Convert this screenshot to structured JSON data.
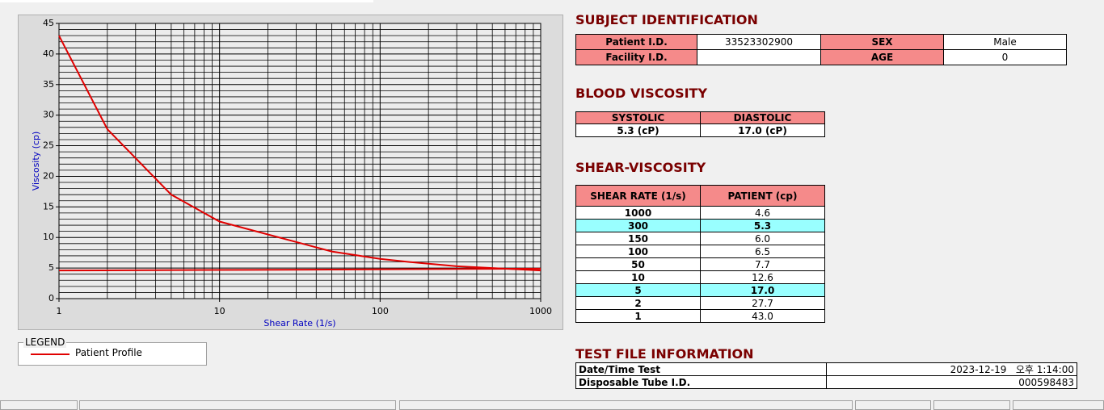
{
  "chart_data": {
    "type": "line",
    "x_label": "Shear Rate (1/s)",
    "y_label": "Viscosity (cp)",
    "series": [
      {
        "name": "Patient Profile",
        "color": "#e00000",
        "x": [
          1,
          2,
          5,
          10,
          50,
          100,
          150,
          300,
          1000
        ],
        "values": [
          43.0,
          27.7,
          17.0,
          12.6,
          7.7,
          6.5,
          6.0,
          5.3,
          4.6
        ]
      },
      {
        "color": "#e00000",
        "x": [
          1,
          15,
          1000
        ],
        "values": [
          4.6,
          4.7,
          4.9
        ]
      }
    ],
    "xlim": [
      1,
      1000
    ],
    "xticks": [
      1,
      10,
      100,
      1000
    ],
    "x_log": true,
    "ylim": [
      0,
      45
    ],
    "yticks": [
      0,
      5,
      10,
      15,
      20,
      25,
      30,
      35,
      40,
      45
    ],
    "x_minor_grid": [
      2,
      3,
      4,
      5,
      6,
      7,
      8,
      9,
      20,
      30,
      40,
      50,
      60,
      70,
      80,
      90,
      200,
      300,
      400,
      500,
      600,
      700,
      800,
      900
    ],
    "y_minor_grid": [
      1,
      2,
      3,
      4,
      6,
      7,
      8,
      9,
      11,
      12,
      13,
      14,
      16,
      17,
      18,
      19,
      21,
      22,
      23,
      24,
      26,
      27,
      28,
      29,
      31,
      32,
      33,
      34,
      36,
      37,
      38,
      39,
      41,
      42,
      43,
      44
    ],
    "grid": true,
    "legend_title": "LEGEND"
  },
  "subject": {
    "title": "SUBJECT IDENTIFICATION",
    "rows": [
      [
        "Patient I.D.",
        "33523302900",
        "SEX",
        "Male"
      ],
      [
        "Facility I.D.",
        null,
        "AGE",
        0
      ]
    ]
  },
  "blood": {
    "title": "BLOOD VISCOSITY",
    "headers": [
      "SYSTOLIC",
      "DIASTOLIC"
    ],
    "values": [
      "5.3 (cP)",
      "17.0 (cP)"
    ]
  },
  "shear": {
    "title": "SHEAR-VISCOSITY",
    "headers": [
      "SHEAR RATE (1/s)",
      "PATIENT (cp)"
    ],
    "rows": [
      {
        "rate": 1000,
        "patient": "4.6",
        "highlight": false
      },
      {
        "rate": 300,
        "patient": "5.3",
        "highlight": true
      },
      {
        "rate": 150,
        "patient": "6.0",
        "highlight": false
      },
      {
        "rate": 100,
        "patient": "6.5",
        "highlight": false
      },
      {
        "rate": 50,
        "patient": "7.7",
        "highlight": false
      },
      {
        "rate": 10,
        "patient": "12.6",
        "highlight": false
      },
      {
        "rate": 5,
        "patient": "17.0",
        "highlight": true
      },
      {
        "rate": 2,
        "patient": "27.7",
        "highlight": false
      },
      {
        "rate": 1,
        "patient": "43.0",
        "highlight": false
      }
    ]
  },
  "test": {
    "title": "TEST FILE INFORMATION",
    "rows": [
      [
        "Date/Time Test",
        "2023-12-19   오후 1:14:00"
      ],
      [
        "Disposable Tube I.D.",
        "000598483"
      ]
    ]
  }
}
